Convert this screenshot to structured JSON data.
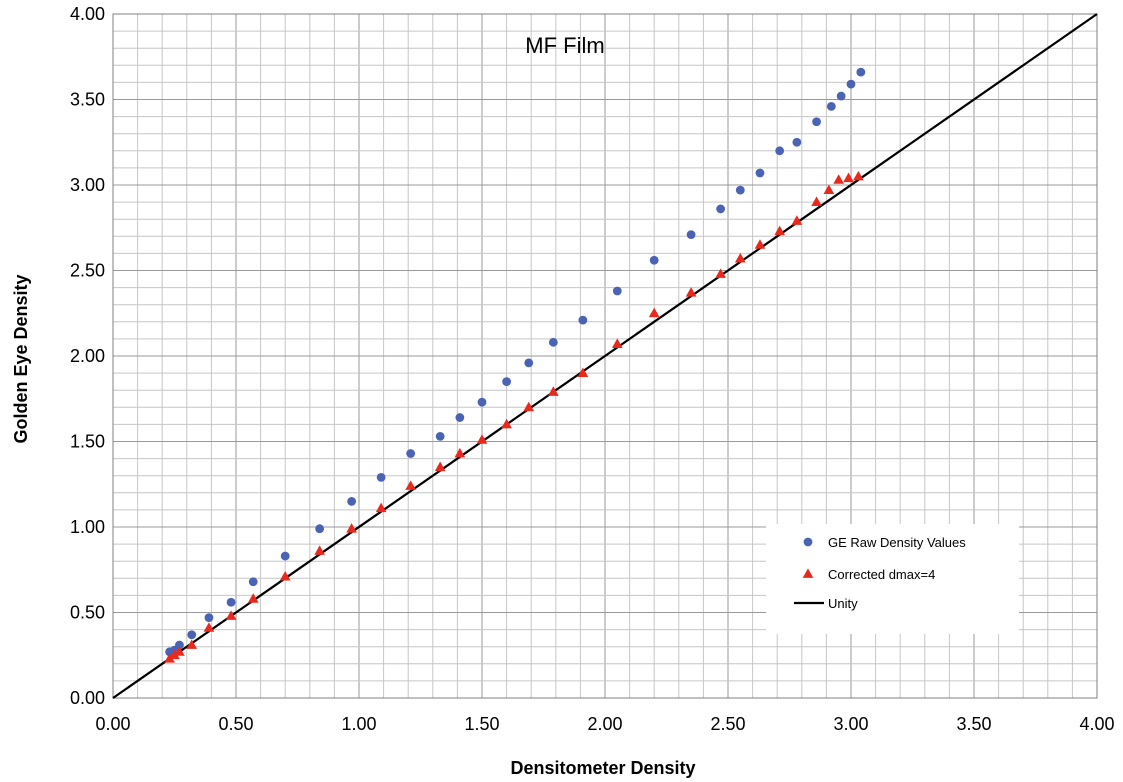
{
  "chart_data": {
    "type": "scatter",
    "title": "MF Film",
    "xlabel": "Densitometer Density",
    "ylabel": "Golden Eye Density",
    "xlim": [
      0,
      4
    ],
    "ylim": [
      0,
      4
    ],
    "x_ticks": [
      "0.00",
      "0.50",
      "1.00",
      "1.50",
      "2.00",
      "2.50",
      "3.00",
      "3.50",
      "4.00"
    ],
    "y_ticks": [
      "0.00",
      "0.50",
      "1.00",
      "1.50",
      "2.00",
      "2.50",
      "3.00",
      "3.50",
      "4.00"
    ],
    "grid": true,
    "legend_position": "bottom-right",
    "series": [
      {
        "name": "GE Raw Density Values",
        "marker": "circle",
        "color": "#4a63b5",
        "points": [
          [
            0.23,
            0.27
          ],
          [
            0.25,
            0.28
          ],
          [
            0.27,
            0.31
          ],
          [
            0.32,
            0.37
          ],
          [
            0.39,
            0.47
          ],
          [
            0.48,
            0.56
          ],
          [
            0.57,
            0.68
          ],
          [
            0.7,
            0.83
          ],
          [
            0.84,
            0.99
          ],
          [
            0.97,
            1.15
          ],
          [
            1.09,
            1.29
          ],
          [
            1.21,
            1.43
          ],
          [
            1.33,
            1.53
          ],
          [
            1.41,
            1.64
          ],
          [
            1.5,
            1.73
          ],
          [
            1.6,
            1.85
          ],
          [
            1.69,
            1.96
          ],
          [
            1.79,
            2.08
          ],
          [
            1.91,
            2.21
          ],
          [
            2.05,
            2.38
          ],
          [
            2.2,
            2.56
          ],
          [
            2.35,
            2.71
          ],
          [
            2.47,
            2.86
          ],
          [
            2.55,
            2.97
          ],
          [
            2.63,
            3.07
          ],
          [
            2.71,
            3.2
          ],
          [
            2.78,
            3.25
          ],
          [
            2.86,
            3.37
          ],
          [
            2.92,
            3.46
          ],
          [
            2.96,
            3.52
          ],
          [
            3.0,
            3.59
          ],
          [
            3.04,
            3.66
          ]
        ]
      },
      {
        "name": "Corrected dmax=4",
        "marker": "triangle",
        "color": "#e8291c",
        "points": [
          [
            0.23,
            0.23
          ],
          [
            0.25,
            0.25
          ],
          [
            0.27,
            0.27
          ],
          [
            0.32,
            0.31
          ],
          [
            0.39,
            0.41
          ],
          [
            0.48,
            0.48
          ],
          [
            0.57,
            0.58
          ],
          [
            0.7,
            0.71
          ],
          [
            0.84,
            0.86
          ],
          [
            0.97,
            0.99
          ],
          [
            1.09,
            1.11
          ],
          [
            1.21,
            1.24
          ],
          [
            1.33,
            1.35
          ],
          [
            1.41,
            1.43
          ],
          [
            1.5,
            1.51
          ],
          [
            1.6,
            1.6
          ],
          [
            1.69,
            1.7
          ],
          [
            1.79,
            1.79
          ],
          [
            1.91,
            1.9
          ],
          [
            2.05,
            2.07
          ],
          [
            2.2,
            2.25
          ],
          [
            2.35,
            2.37
          ],
          [
            2.47,
            2.48
          ],
          [
            2.55,
            2.57
          ],
          [
            2.63,
            2.65
          ],
          [
            2.71,
            2.73
          ],
          [
            2.78,
            2.79
          ],
          [
            2.86,
            2.9
          ],
          [
            2.91,
            2.97
          ],
          [
            2.95,
            3.03
          ],
          [
            2.99,
            3.04
          ],
          [
            3.03,
            3.05
          ]
        ]
      },
      {
        "name": "Unity",
        "marker": "line",
        "color": "#000000",
        "points": [
          [
            0,
            0
          ],
          [
            4,
            4
          ]
        ]
      }
    ]
  }
}
